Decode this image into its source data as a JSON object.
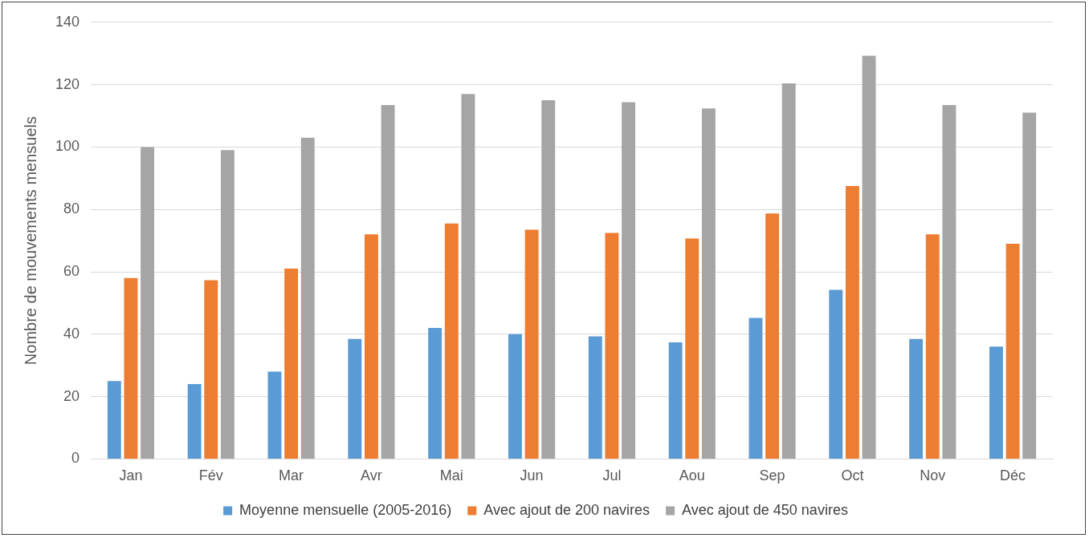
{
  "chart_data": {
    "type": "bar",
    "ylabel": "Nombre de mouvements mensuels",
    "categories": [
      "Jan",
      "Fév",
      "Mar",
      "Avr",
      "Mai",
      "Jun",
      "Jul",
      "Aou",
      "Sep",
      "Oct",
      "Nov",
      "Déc"
    ],
    "series": [
      {
        "name": "Moyenne mensuelle (2005-2016)",
        "color": "#5b9bd5",
        "values": [
          25,
          24,
          28,
          38.5,
          42,
          40,
          39.3,
          37.4,
          45.2,
          54.2,
          38.5,
          36
        ]
      },
      {
        "name": "Avec ajout de 200 navires",
        "color": "#ed7d31",
        "values": [
          58,
          57.3,
          61,
          72,
          75.5,
          73.5,
          72.5,
          70.7,
          78.7,
          87.5,
          72,
          69
        ]
      },
      {
        "name": "Avec ajout de 450 navires",
        "color": "#a5a5a5",
        "values": [
          100,
          99,
          103,
          113.5,
          117,
          115,
          114.4,
          112.4,
          120.4,
          129.3,
          113.5,
          111
        ]
      }
    ],
    "ylim": [
      0,
      140
    ],
    "yticks": [
      0,
      20,
      40,
      60,
      80,
      100,
      120,
      140
    ],
    "grid": "y",
    "legend": "bottom"
  }
}
